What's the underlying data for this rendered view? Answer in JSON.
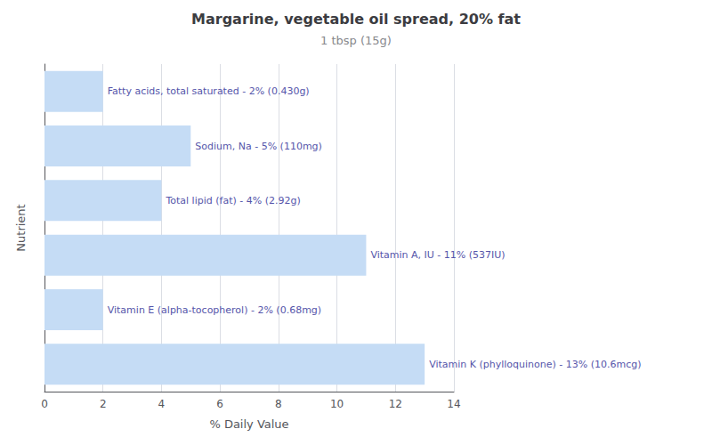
{
  "chart_data": {
    "type": "bar",
    "orientation": "horizontal",
    "title": "Margarine, vegetable oil spread, 20% fat",
    "subtitle": "1 tbsp (15g)",
    "xlabel": "% Daily Value",
    "ylabel": "Nutrient",
    "categories": [
      "Fatty acids, total saturated - 2% (0.430g)",
      "Sodium, Na - 5% (110mg)",
      "Total lipid (fat) - 4% (2.92g)",
      "Vitamin A, IU - 11% (537IU)",
      "Vitamin E (alpha-tocopherol) - 2% (0.68mg)",
      "Vitamin K (phylloquinone) - 13% (10.6mcg)"
    ],
    "values": [
      2,
      5,
      4,
      11,
      2,
      13
    ],
    "color": "#c5dcf5",
    "xlim": [
      0,
      14
    ],
    "xticks": [
      0,
      2,
      4,
      6,
      8,
      10,
      12,
      14
    ],
    "grid": true,
    "tick_labels": "x"
  }
}
